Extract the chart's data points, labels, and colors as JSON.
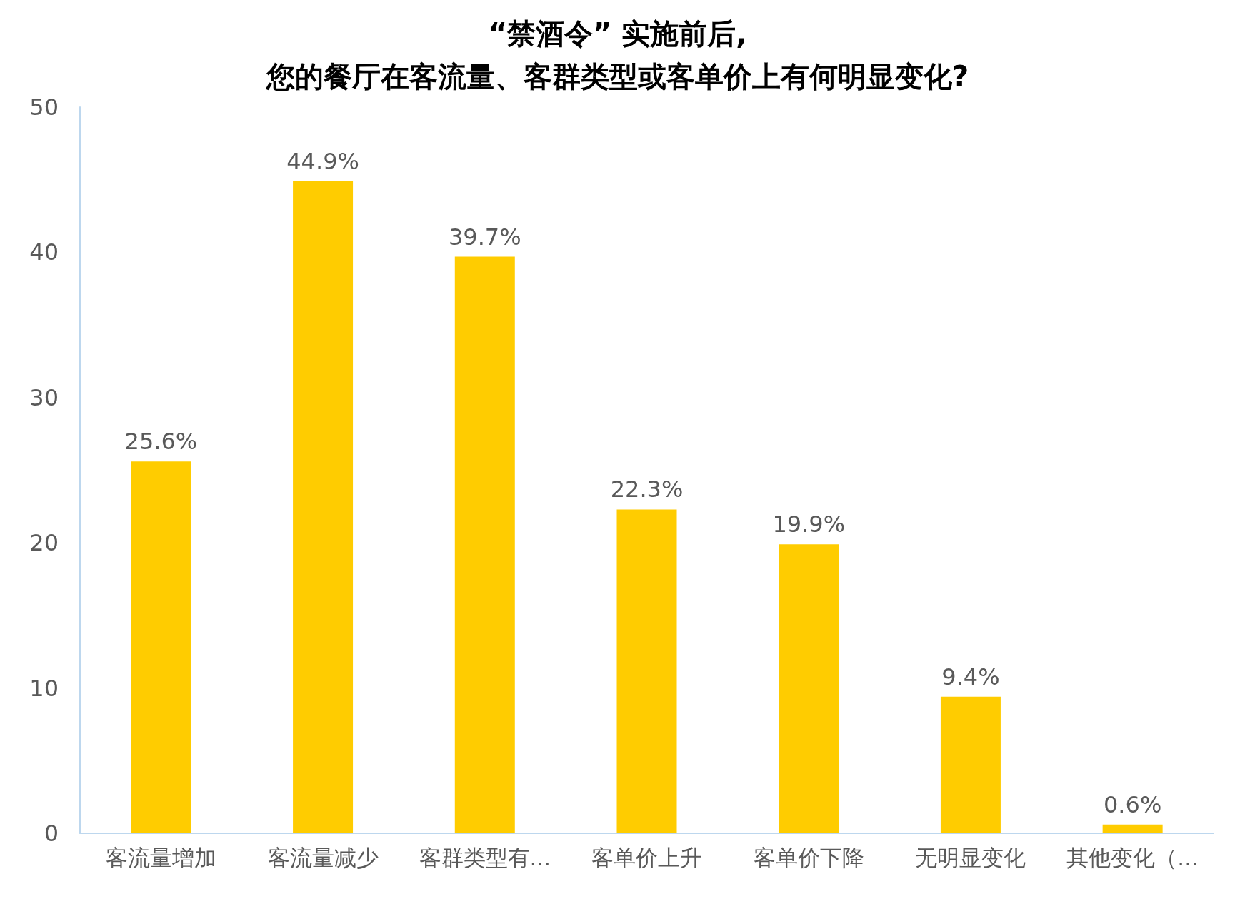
{
  "chart_data": {
    "type": "bar",
    "title": "“禁酒令” 实施前后,\n您的餐厅在客流量、客群类型或客单价上有何明显变化?",
    "categories": [
      "客流量增加",
      "客流量减少",
      "客群类型有...",
      "客单价上升",
      "客单价下降",
      "无明显变化",
      "其他变化（..."
    ],
    "values": [
      25.6,
      44.9,
      39.7,
      22.3,
      19.9,
      9.4,
      0.6
    ],
    "value_labels": [
      "25.6%",
      "44.9%",
      "39.7%",
      "22.3%",
      "19.9%",
      "9.4%",
      "0.6%"
    ],
    "color": "#ffcc00",
    "ylim": [
      0,
      50
    ],
    "yticks": [
      0,
      10,
      20,
      30,
      40,
      50
    ],
    "grid": false
  }
}
